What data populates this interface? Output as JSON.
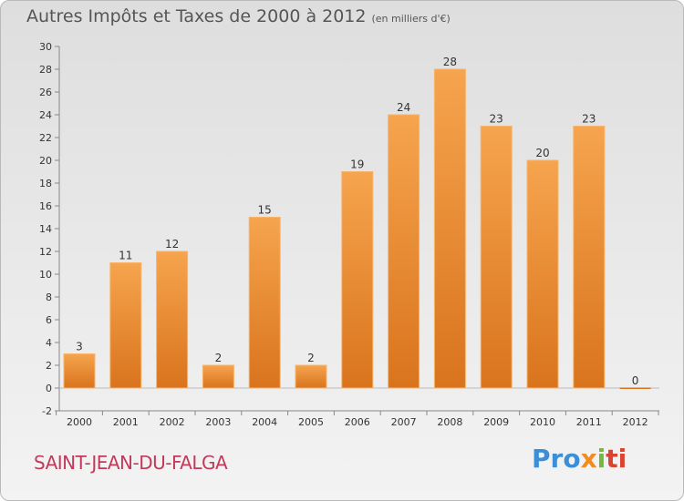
{
  "title": "Autres Impôts et Taxes de 2000 à 2012",
  "unit": "(en milliers d'€)",
  "city": "SAINT-JEAN-DU-FALGA",
  "logo_parts": [
    "Pro",
    "x",
    "i",
    "ti"
  ],
  "colors": {
    "bar_top": "#f6a44e",
    "bar_bottom": "#d9741d",
    "title": "#555555",
    "city": "#c3395a",
    "logo_blue": "#3b8fd6",
    "logo_orange": "#f18d1e",
    "logo_green": "#74b83d",
    "logo_red": "#d9432f"
  },
  "chart_data": {
    "type": "bar",
    "title": "Autres Impôts et Taxes de 2000 à 2012",
    "categories": [
      "2000",
      "2001",
      "2002",
      "2003",
      "2004",
      "2005",
      "2006",
      "2007",
      "2008",
      "2009",
      "2010",
      "2011",
      "2012"
    ],
    "values": [
      3,
      11,
      12,
      2,
      15,
      2,
      19,
      24,
      28,
      23,
      20,
      23,
      0
    ],
    "value_labels": [
      "3",
      "11",
      "12",
      "2",
      "15",
      "2",
      "19",
      "24",
      "28",
      "23",
      "20",
      "23",
      "0"
    ],
    "ylim": [
      -2,
      30
    ],
    "yticks": [
      -2,
      0,
      2,
      4,
      6,
      8,
      10,
      12,
      14,
      16,
      18,
      20,
      22,
      24,
      26,
      28,
      30
    ],
    "grid": false,
    "legend": "none"
  }
}
